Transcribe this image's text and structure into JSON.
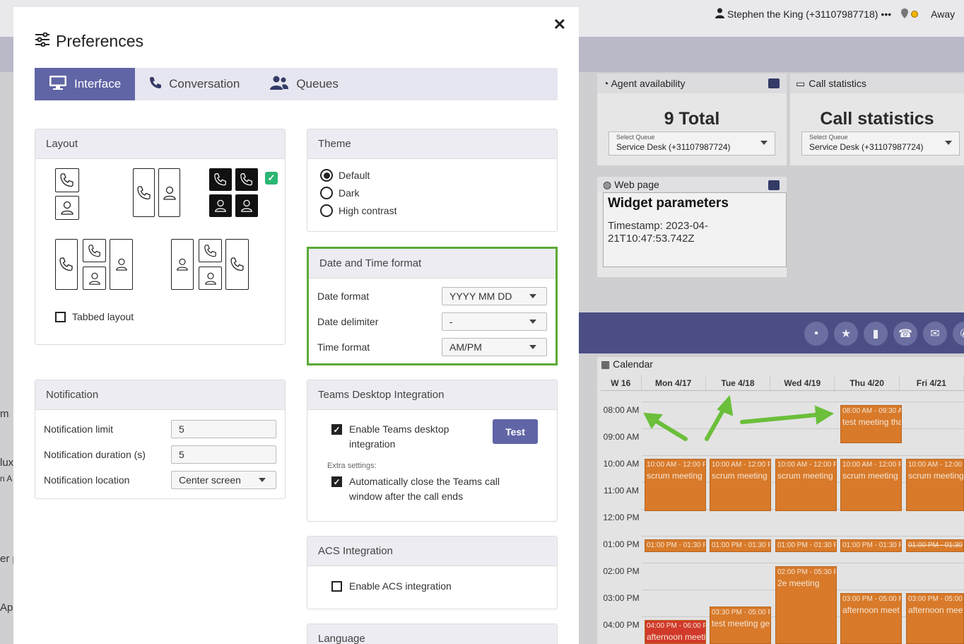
{
  "background": {
    "user": "Stephen the King (+31107987718)",
    "user_more": "•••",
    "status": "Away",
    "widgets": {
      "agent_availability": {
        "title": "Agent availability",
        "big": "9 Total",
        "select_label": "Select Queue",
        "select_value": "Service Desk (+31107987724)"
      },
      "call_statistics": {
        "title": "Call statistics",
        "big": "Call statistics",
        "select_label": "Select Queue",
        "select_value": "Service Desk (+31107987724)"
      },
      "web_page": {
        "title": "Web page",
        "heading": "Widget parameters",
        "body": "Timestamp: 2023-04-21T10:47:53.742Z"
      }
    },
    "left_fragments": [
      "m",
      "lux",
      "n A",
      "er p",
      "Aps"
    ],
    "calendar": {
      "title": "Calendar",
      "headers": [
        "W 16",
        "Mon 4/17",
        "Tue 4/18",
        "Wed 4/19",
        "Thu 4/20",
        "Fri 4/21"
      ],
      "times": [
        "08:00 AM",
        "09:00 AM",
        "10:00 AM",
        "11:00 AM",
        "12:00 PM",
        "01:00 PM",
        "02:00 PM",
        "03:00 PM",
        "04:00 PM"
      ],
      "events": {
        "thu_morning": {
          "time": "08:00 AM - 09:30 A",
          "title": "test meeting tha"
        },
        "scrum_time": "10:00 AM - 12:00 F",
        "scrum_time_fri": "10:00 AM - 12:00",
        "scrum_title": "scrum meeting",
        "lunch_time": "01:00 PM - 01:30 F",
        "lunch_time_fri": "01:00 PM - 01:30",
        "wed_2e": {
          "time": "02:00 PM - 05:30 F",
          "title": "2e meeting"
        },
        "tue_test": {
          "time": "03:30 PM - 05:00 F",
          "title": "test meeting ge"
        },
        "thu_afternoon": {
          "time": "03:00 PM - 05:00 F",
          "title": "afternoon meet"
        },
        "fri_afternoon": {
          "time": "03:00 PM - 05:00",
          "title": "afternoon meet"
        },
        "mon_afternoon": {
          "time": "04:00 PM - 06:00 F",
          "title": "afternoon meeti"
        }
      }
    }
  },
  "modal": {
    "title": "Preferences",
    "tabs": [
      {
        "label": "Interface",
        "icon": "monitor-icon"
      },
      {
        "label": "Conversation",
        "icon": "phone-icon"
      },
      {
        "label": "Queues",
        "icon": "users-icon"
      }
    ],
    "layout": {
      "title": "Layout",
      "tabbed_label": "Tabbed layout",
      "tabbed_checked": false
    },
    "theme": {
      "title": "Theme",
      "options": [
        "Default",
        "Dark",
        "High contrast"
      ],
      "selected": "Default"
    },
    "date_time": {
      "title": "Date and Time format",
      "date_format_label": "Date format",
      "date_format_value": "YYYY MM DD",
      "date_delimiter_label": "Date delimiter",
      "date_delimiter_value": "-",
      "time_format_label": "Time format",
      "time_format_value": "AM/PM",
      "highlight_color": "#5aaa35"
    },
    "notification": {
      "title": "Notification",
      "limit_label": "Notification limit",
      "limit_value": "5",
      "duration_label": "Notification duration (s)",
      "duration_value": "5",
      "location_label": "Notification location",
      "location_value": "Center screen"
    },
    "teams": {
      "title": "Teams Desktop Integration",
      "enable_label": "Enable Teams desktop integration",
      "enable_checked": true,
      "test_label": "Test",
      "extra_label": "Extra settings:",
      "auto_close_label": "Automatically close the Teams call window after the call ends",
      "auto_close_checked": true
    },
    "acs": {
      "title": "ACS Integration",
      "enable_label": "Enable ACS integration",
      "enable_checked": false
    },
    "language": {
      "title": "Language"
    }
  },
  "colors": {
    "accent": "#6065a6",
    "event": "#d87a2a",
    "arrow": "#6bbf3a"
  }
}
